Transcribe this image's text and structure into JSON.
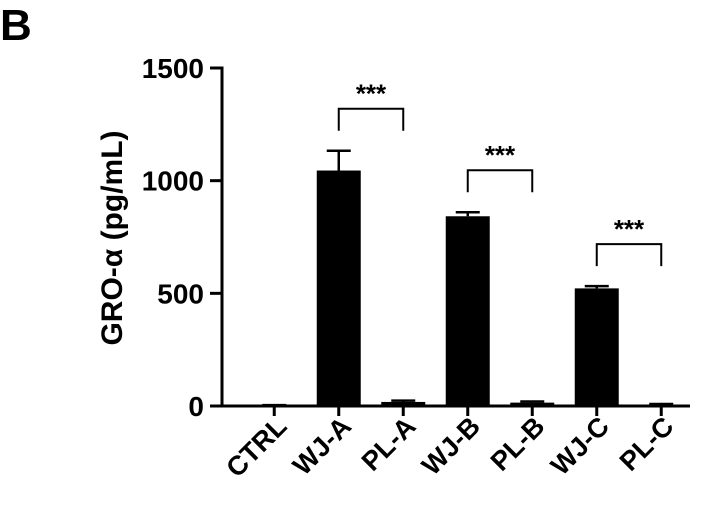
{
  "panel_label": "B",
  "chart_data": {
    "type": "bar",
    "title": "",
    "xlabel": "",
    "ylabel": "GRO-α (pg/mL)",
    "ylim": [
      0,
      1500
    ],
    "yticks": [
      0,
      500,
      1000,
      1500
    ],
    "categories": [
      "CTRL",
      "WJ-A",
      "PL-A",
      "WJ-B",
      "PL-B",
      "WJ-C",
      "PL-C"
    ],
    "values": [
      2,
      1045,
      18,
      842,
      15,
      522,
      5
    ],
    "errors": [
      2,
      88,
      6,
      18,
      5,
      10,
      4
    ],
    "bar_color": "#000000",
    "significance": [
      {
        "from": "WJ-A",
        "to": "PL-A",
        "label": "***"
      },
      {
        "from": "WJ-B",
        "to": "PL-B",
        "label": "***"
      },
      {
        "from": "WJ-C",
        "to": "PL-C",
        "label": "***"
      }
    ]
  }
}
